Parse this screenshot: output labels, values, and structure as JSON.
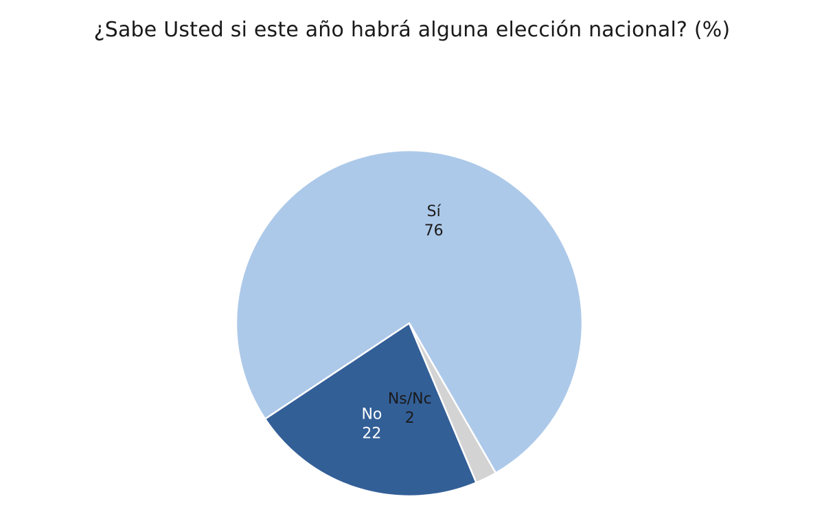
{
  "chart_data": {
    "type": "pie",
    "title": "¿Sabe Usted si este año habrá alguna elección nacional? (%)",
    "slices": [
      {
        "label": "Sí",
        "value": 76,
        "color": "#adc9e9",
        "label_color": "#1a1a1a"
      },
      {
        "label": "No",
        "value": 22,
        "color": "#335f97",
        "label_color": "#ffffff"
      },
      {
        "label": "Ns/Nc",
        "value": 2,
        "color": "#d3d3d3",
        "label_color": "#1a1a1a"
      }
    ],
    "legend": "none"
  }
}
